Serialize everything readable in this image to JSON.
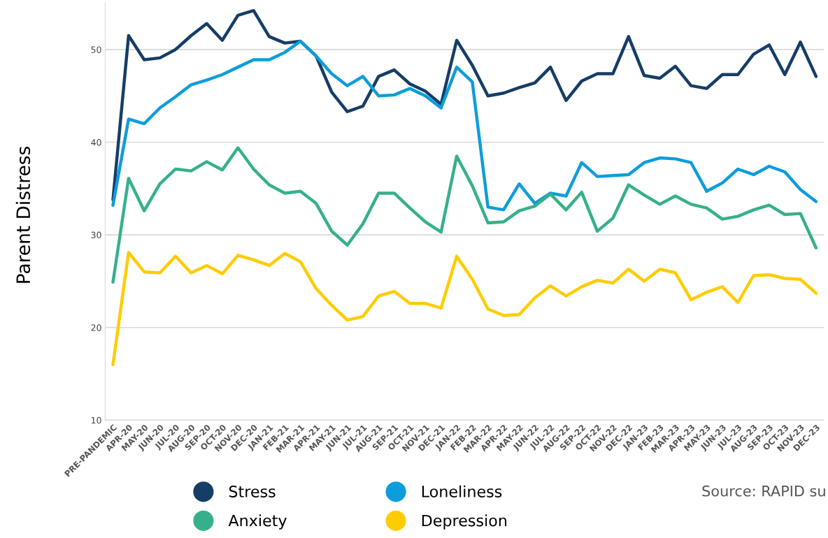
{
  "chart_data": {
    "type": "line",
    "ylabel": "Parent Distress",
    "categories": [
      "PRE-PANDEMIC",
      "APR-20",
      "MAY-20",
      "JUN-20",
      "JUL-20",
      "AUG-20",
      "SEP-20",
      "OCT-20",
      "NOV-20",
      "DEC-20",
      "JAN-21",
      "FEB-21",
      "MAR-21",
      "APR-21",
      "MAY-21",
      "JUN-21",
      "JUL-21",
      "AUG-21",
      "SEP-21",
      "OCT-21",
      "NOV-21",
      "DEC-21",
      "JAN-22",
      "FEB-22",
      "MAR-22",
      "APR-22",
      "MAY-22",
      "JUN-22",
      "JUL-22",
      "AUG-22",
      "SEP-22",
      "OCT-22",
      "NOV-22",
      "DEC-22",
      "JAN-23",
      "FEB-23",
      "MAR-23",
      "APR-23",
      "MAY-23",
      "JUN-23",
      "JUL-23",
      "AUG-23",
      "SEP-23",
      "OCT-23",
      "NOV-23",
      "DEC-23"
    ],
    "series": [
      {
        "name": "Stress",
        "color": "#163d66",
        "values": [
          33.8,
          51.5,
          48.9,
          49.1,
          50.0,
          51.5,
          52.8,
          51.0,
          53.7,
          54.2,
          51.4,
          50.7,
          50.9,
          49.3,
          45.4,
          43.3,
          43.9,
          47.1,
          47.8,
          46.3,
          45.5,
          44.1,
          51.0,
          48.3,
          45.0,
          45.3,
          45.9,
          46.4,
          48.1,
          44.5,
          46.6,
          47.4,
          47.4,
          51.4,
          47.2,
          46.9,
          48.2,
          46.1,
          45.8,
          47.3,
          47.3,
          49.5,
          50.5,
          47.3,
          50.8,
          47.1
        ]
      },
      {
        "name": "Loneliness",
        "color": "#0d9ddb",
        "values": [
          33.2,
          42.5,
          42.0,
          43.7,
          44.9,
          46.2,
          46.7,
          47.3,
          48.1,
          48.9,
          48.9,
          49.7,
          50.9,
          49.3,
          47.4,
          46.1,
          47.1,
          45.0,
          45.1,
          45.8,
          45.0,
          43.7,
          48.1,
          46.5,
          33.0,
          32.7,
          35.5,
          33.4,
          34.5,
          34.2,
          37.8,
          36.3,
          36.4,
          36.5,
          37.8,
          38.3,
          38.2,
          37.8,
          34.7,
          35.6,
          37.1,
          36.5,
          37.4,
          36.8,
          34.9,
          33.6
        ]
      },
      {
        "name": "Anxiety",
        "color": "#36b08c",
        "values": [
          24.9,
          36.1,
          32.6,
          35.5,
          37.1,
          36.9,
          37.9,
          37.0,
          39.4,
          37.1,
          35.4,
          34.5,
          34.7,
          33.4,
          30.4,
          28.9,
          31.2,
          34.5,
          34.5,
          32.9,
          31.4,
          30.3,
          38.5,
          35.3,
          31.3,
          31.4,
          32.6,
          33.1,
          34.4,
          32.7,
          34.6,
          30.4,
          31.8,
          35.4,
          34.3,
          33.3,
          34.2,
          33.3,
          32.9,
          31.7,
          32.0,
          32.7,
          33.2,
          32.2,
          32.3,
          28.6
        ]
      },
      {
        "name": "Depression",
        "color": "#ffcc00",
        "values": [
          16.0,
          28.1,
          26.0,
          25.9,
          27.7,
          25.9,
          26.7,
          25.8,
          27.8,
          27.3,
          26.7,
          28.0,
          27.1,
          24.2,
          22.4,
          20.8,
          21.2,
          23.4,
          23.9,
          22.6,
          22.6,
          22.1,
          27.7,
          25.2,
          22.0,
          21.3,
          21.4,
          23.2,
          24.5,
          23.4,
          24.4,
          25.1,
          24.8,
          26.3,
          25.0,
          26.3,
          25.9,
          23.0,
          23.8,
          24.4,
          22.7,
          25.6,
          25.7,
          25.3,
          25.2,
          23.7
        ]
      }
    ],
    "ylim": [
      10,
      55
    ],
    "yticks": [
      10,
      20,
      30,
      40,
      50
    ],
    "grid": "y",
    "legend": "bottom",
    "marker": "none",
    "line_style": "solid",
    "annotations": [
      "Source: RAPID su"
    ]
  }
}
